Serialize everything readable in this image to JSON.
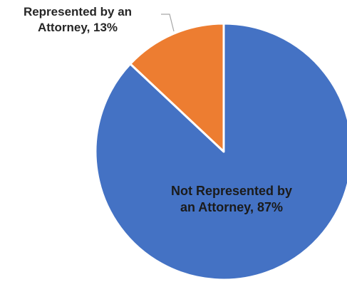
{
  "chart_data": {
    "type": "pie",
    "title": "",
    "categories": [
      "Represented by an Attorney",
      "Not Represented by an Attorney"
    ],
    "values": [
      13,
      87
    ],
    "unit": "%",
    "colors": [
      "#ED7D31",
      "#4472C4"
    ],
    "start_angle_deg": 0,
    "direction": "counterclockwise",
    "legend": "none",
    "data_labels": [
      {
        "line1": "Represented by an",
        "line2": "Attorney, 13%"
      },
      {
        "line1": "Not Represented by",
        "line2": "an Attorney, 87%"
      }
    ]
  }
}
